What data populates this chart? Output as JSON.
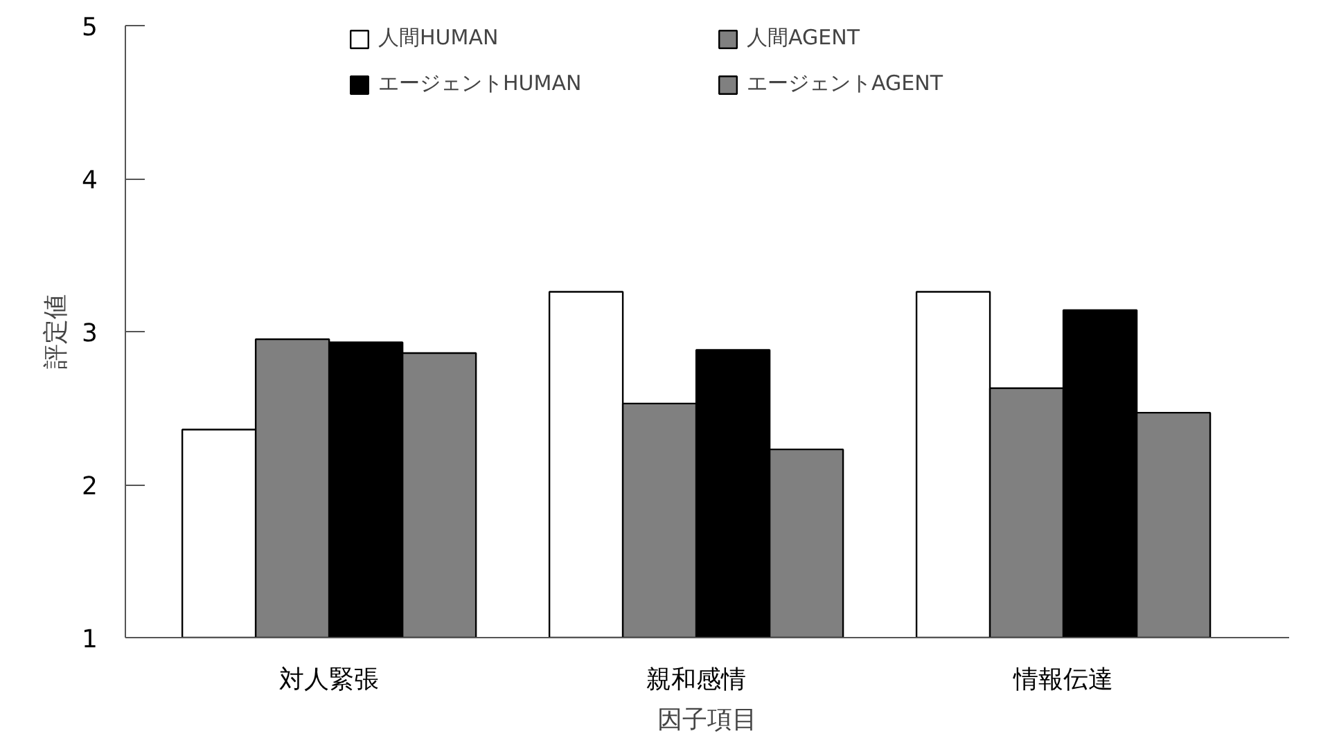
{
  "chart_data": {
    "type": "bar",
    "xlabel": "因子項目",
    "ylabel": "評定値",
    "categories": [
      "対人緊張",
      "親和感情",
      "情報伝達"
    ],
    "ylim": [
      1,
      5
    ],
    "yticks": [
      1,
      2,
      3,
      4,
      5
    ],
    "grid": false,
    "legend": "top",
    "series": [
      {
        "name": "人間HUMAN",
        "color": "#ffffff",
        "values": [
          2.36,
          3.26,
          3.26
        ]
      },
      {
        "name": "人間AGENT",
        "color": "#808080",
        "values": [
          2.95,
          2.53,
          2.63
        ]
      },
      {
        "name": "エージェントHUMAN",
        "color": "#000000",
        "values": [
          2.93,
          2.88,
          3.14
        ]
      },
      {
        "name": "エージェントAGENT",
        "color": "#808080",
        "values": [
          2.86,
          2.23,
          2.47
        ]
      }
    ]
  }
}
